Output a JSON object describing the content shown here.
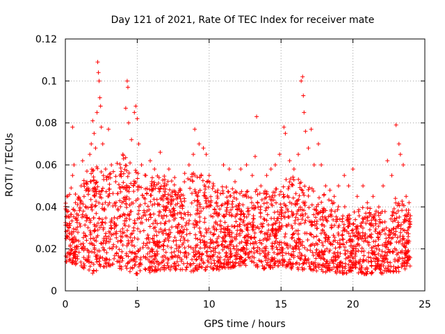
{
  "chart_data": {
    "type": "scatter",
    "title": "Day 121 of 2021, Rate Of TEC Index for receiver mate",
    "xlabel": "GPS time / hours",
    "ylabel": "ROTI / TECUs",
    "xlim": [
      0,
      25
    ],
    "ylim": [
      0,
      0.12
    ],
    "x_ticks": [
      0,
      5,
      10,
      15,
      20,
      25
    ],
    "y_ticks": [
      0,
      0.02,
      0.04,
      0.06,
      0.08,
      0.1,
      0.12
    ],
    "x_tick_labels": [
      "0",
      "5",
      "10",
      "15",
      "20",
      "25"
    ],
    "y_tick_labels": [
      "0",
      "0.02",
      "0.04",
      "0.06",
      "0.08",
      "0.1",
      "0.12"
    ],
    "grid": true,
    "marker": "+",
    "color": "#ff0000",
    "series": [
      {
        "points": [
          [
            0.1,
            0.045
          ],
          [
            0.2,
            0.038
          ],
          [
            0.3,
            0.032
          ],
          [
            0.4,
            0.049
          ],
          [
            0.5,
            0.055
          ],
          [
            0.5,
            0.078
          ],
          [
            0.6,
            0.06
          ],
          [
            0.7,
            0.042
          ],
          [
            0.9,
            0.036
          ],
          [
            1.1,
            0.05
          ],
          [
            1.2,
            0.062
          ],
          [
            1.3,
            0.045
          ],
          [
            1.5,
            0.057
          ],
          [
            1.7,
            0.065
          ],
          [
            1.8,
            0.07
          ],
          [
            1.9,
            0.081
          ],
          [
            2.0,
            0.075
          ],
          [
            2.1,
            0.068
          ],
          [
            2.2,
            0.085
          ],
          [
            2.25,
            0.109
          ],
          [
            2.3,
            0.104
          ],
          [
            2.35,
            0.1
          ],
          [
            2.4,
            0.092
          ],
          [
            2.45,
            0.088
          ],
          [
            2.5,
            0.078
          ],
          [
            2.6,
            0.07
          ],
          [
            2.8,
            0.058
          ],
          [
            3.0,
            0.077
          ],
          [
            3.2,
            0.06
          ],
          [
            3.5,
            0.052
          ],
          [
            3.8,
            0.055
          ],
          [
            4.0,
            0.065
          ],
          [
            4.2,
            0.087
          ],
          [
            4.3,
            0.1
          ],
          [
            4.35,
            0.097
          ],
          [
            4.4,
            0.08
          ],
          [
            4.6,
            0.072
          ],
          [
            4.8,
            0.085
          ],
          [
            4.9,
            0.088
          ],
          [
            5.0,
            0.082
          ],
          [
            5.1,
            0.07
          ],
          [
            5.3,
            0.06
          ],
          [
            5.6,
            0.055
          ],
          [
            5.9,
            0.062
          ],
          [
            6.2,
            0.058
          ],
          [
            6.6,
            0.066
          ],
          [
            6.9,
            0.05
          ],
          [
            7.2,
            0.058
          ],
          [
            7.6,
            0.054
          ],
          [
            8.0,
            0.048
          ],
          [
            8.3,
            0.056
          ],
          [
            8.6,
            0.06
          ],
          [
            8.9,
            0.065
          ],
          [
            9.0,
            0.077
          ],
          [
            9.3,
            0.07
          ],
          [
            9.6,
            0.068
          ],
          [
            9.8,
            0.065
          ],
          [
            10.0,
            0.055
          ],
          [
            10.3,
            0.05
          ],
          [
            10.6,
            0.048
          ],
          [
            11.0,
            0.06
          ],
          [
            11.4,
            0.058
          ],
          [
            11.8,
            0.052
          ],
          [
            12.2,
            0.058
          ],
          [
            12.6,
            0.06
          ],
          [
            13.0,
            0.055
          ],
          [
            13.2,
            0.064
          ],
          [
            13.3,
            0.083
          ],
          [
            13.6,
            0.05
          ],
          [
            14.0,
            0.055
          ],
          [
            14.3,
            0.058
          ],
          [
            14.6,
            0.06
          ],
          [
            14.9,
            0.065
          ],
          [
            15.2,
            0.078
          ],
          [
            15.3,
            0.075
          ],
          [
            15.6,
            0.062
          ],
          [
            15.9,
            0.058
          ],
          [
            16.2,
            0.065
          ],
          [
            16.4,
            0.1
          ],
          [
            16.5,
            0.102
          ],
          [
            16.55,
            0.093
          ],
          [
            16.6,
            0.085
          ],
          [
            16.7,
            0.076
          ],
          [
            16.9,
            0.068
          ],
          [
            17.1,
            0.077
          ],
          [
            17.3,
            0.06
          ],
          [
            17.6,
            0.07
          ],
          [
            17.8,
            0.06
          ],
          [
            18.1,
            0.05
          ],
          [
            18.4,
            0.048
          ],
          [
            18.7,
            0.045
          ],
          [
            19.0,
            0.05
          ],
          [
            19.4,
            0.055
          ],
          [
            19.7,
            0.05
          ],
          [
            20.0,
            0.058
          ],
          [
            20.3,
            0.045
          ],
          [
            20.7,
            0.05
          ],
          [
            21.0,
            0.042
          ],
          [
            21.4,
            0.045
          ],
          [
            21.8,
            0.04
          ],
          [
            22.1,
            0.05
          ],
          [
            22.4,
            0.062
          ],
          [
            22.7,
            0.055
          ],
          [
            23.0,
            0.079
          ],
          [
            23.2,
            0.07
          ],
          [
            23.3,
            0.065
          ],
          [
            23.5,
            0.06
          ],
          [
            23.7,
            0.045
          ],
          [
            23.9,
            0.042
          ]
        ]
      }
    ],
    "band": {
      "note_x": [
        0,
        1,
        2,
        3,
        4,
        5,
        6,
        7,
        8,
        9,
        10,
        11,
        12,
        13,
        14,
        15,
        16,
        17,
        18,
        19,
        20,
        21,
        22,
        23,
        24
      ],
      "low": [
        0.014,
        0.012,
        0.008,
        0.012,
        0.01,
        0.008,
        0.009,
        0.01,
        0.01,
        0.009,
        0.01,
        0.01,
        0.012,
        0.012,
        0.01,
        0.012,
        0.01,
        0.01,
        0.009,
        0.008,
        0.008,
        0.008,
        0.008,
        0.009,
        0.01
      ],
      "high": [
        0.045,
        0.05,
        0.06,
        0.055,
        0.065,
        0.058,
        0.055,
        0.055,
        0.05,
        0.058,
        0.052,
        0.05,
        0.048,
        0.048,
        0.05,
        0.052,
        0.055,
        0.05,
        0.046,
        0.042,
        0.04,
        0.04,
        0.038,
        0.045,
        0.04
      ]
    }
  }
}
